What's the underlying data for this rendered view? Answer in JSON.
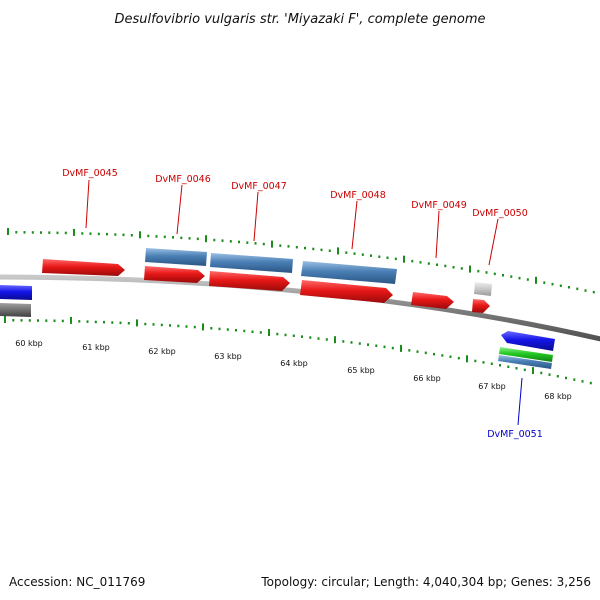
{
  "title": "Desulfovibrio vulgaris str. 'Miyazaki F', complete genome",
  "footer": {
    "accession": "Accession: NC_011769",
    "stats": "Topology: circular; Length: 4,040,304 bp; Genes: 3,256"
  },
  "colors": {
    "red_gene": "#e81818",
    "steel_gene": "#4a7fb5",
    "blue_gene": "#1414e8",
    "green_gene": "#22c822",
    "gray_gene": "#c8c8c8",
    "dark_gray_gene": "#707070",
    "backbone": "#808080",
    "ticks": "#1a8c1a",
    "label_red": "#cc0000",
    "label_blue": "#0000cc"
  },
  "kbp_labels": [
    "60 kbp",
    "61 kbp",
    "62 kbp",
    "63 kbp",
    "64 kbp",
    "65 kbp",
    "66 kbp",
    "67 kbp",
    "68 kbp"
  ],
  "genes": [
    {
      "name": "DvMF_0045",
      "color": "label_red"
    },
    {
      "name": "DvMF_0046",
      "color": "label_red"
    },
    {
      "name": "DvMF_0047",
      "color": "label_red"
    },
    {
      "name": "DvMF_0048",
      "color": "label_red"
    },
    {
      "name": "DvMF_0049",
      "color": "label_red"
    },
    {
      "name": "DvMF_0050",
      "color": "label_red"
    },
    {
      "name": "DvMF_0051",
      "color": "label_blue"
    }
  ]
}
